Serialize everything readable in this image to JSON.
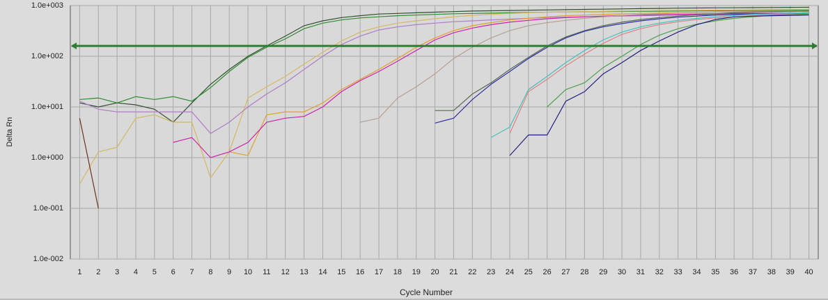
{
  "chart_data": {
    "type": "line",
    "log_scale": true,
    "grid": true,
    "y_label": "Delta Rn",
    "x_label": "Cycle Number",
    "x": [
      1,
      2,
      3,
      4,
      5,
      6,
      7,
      8,
      9,
      10,
      11,
      12,
      13,
      14,
      15,
      16,
      17,
      18,
      19,
      20,
      21,
      22,
      23,
      24,
      25,
      26,
      27,
      28,
      29,
      30,
      31,
      32,
      33,
      34,
      35,
      36,
      37,
      38,
      39,
      40
    ],
    "xlim": [
      0.5,
      40.5
    ],
    "xticks": [
      1,
      2,
      3,
      4,
      5,
      6,
      7,
      8,
      9,
      10,
      11,
      12,
      13,
      14,
      15,
      16,
      17,
      18,
      19,
      20,
      21,
      22,
      23,
      24,
      25,
      26,
      27,
      28,
      29,
      30,
      31,
      32,
      33,
      34,
      35,
      36,
      37,
      38,
      39,
      40
    ],
    "ylim": [
      0.01,
      1000
    ],
    "yticks": [
      {
        "value": 0.01,
        "label": "1.0e-002"
      },
      {
        "value": 0.1,
        "label": "1.0e-001"
      },
      {
        "value": 1,
        "label": "1.0e+000"
      },
      {
        "value": 10,
        "label": "1.0e+001"
      },
      {
        "value": 100,
        "label": "1.0e+002"
      },
      {
        "value": 1000,
        "label": "1.0e+003"
      }
    ],
    "threshold": 160,
    "threshold_color": "#2e7d32",
    "series": [
      {
        "color": "#2f4f2f",
        "values": [
          12,
          10,
          12,
          11,
          9,
          5,
          12,
          28,
          55,
          100,
          160,
          250,
          400,
          500,
          580,
          630,
          680,
          700,
          720,
          740,
          760,
          780,
          790,
          800,
          810,
          820,
          830,
          840,
          850,
          860,
          870,
          880,
          890,
          895,
          900,
          905,
          910,
          915,
          920,
          925
        ]
      },
      {
        "color": "#2e8b2e",
        "values": [
          14,
          15,
          12,
          16,
          14,
          16,
          13,
          24,
          50,
          95,
          150,
          220,
          350,
          450,
          520,
          570,
          600,
          630,
          650,
          670,
          690,
          700,
          710,
          720,
          730,
          740,
          750,
          755,
          760,
          765,
          770,
          775,
          780,
          785,
          790,
          795,
          800,
          805,
          810,
          815
        ]
      },
      {
        "color": "#d4b860",
        "values": [
          0.3,
          1.3,
          1.6,
          6,
          7,
          5,
          5,
          0.4,
          1.3,
          15,
          25,
          40,
          70,
          120,
          200,
          300,
          380,
          450,
          500,
          550,
          600,
          640,
          670,
          700,
          720,
          740,
          750,
          760,
          770,
          780,
          790,
          800,
          805,
          810,
          815,
          820,
          825,
          830,
          835,
          840
        ]
      },
      {
        "color": "#b07cc6",
        "values": [
          13,
          9,
          8,
          8,
          8,
          8,
          8,
          3,
          5,
          10,
          18,
          30,
          55,
          100,
          170,
          250,
          330,
          380,
          420,
          450,
          480,
          500,
          520,
          540,
          560,
          580,
          590,
          600,
          610,
          620,
          630,
          640,
          650,
          655,
          660,
          665,
          670,
          675,
          680,
          685
        ]
      },
      {
        "color": "#e0a030",
        "values": [
          null,
          null,
          null,
          null,
          null,
          null,
          null,
          null,
          1.3,
          1.1,
          7,
          8,
          8,
          12,
          22,
          35,
          55,
          90,
          150,
          230,
          320,
          400,
          460,
          520,
          560,
          600,
          630,
          650,
          670,
          690,
          700,
          710,
          720,
          730,
          740,
          750,
          755,
          760,
          765,
          770
        ]
      },
      {
        "color": "#cc22aa",
        "values": [
          null,
          null,
          null,
          null,
          null,
          2,
          2.5,
          1,
          1.3,
          2,
          5,
          6,
          6.5,
          10,
          20,
          33,
          50,
          80,
          130,
          210,
          290,
          360,
          420,
          470,
          510,
          550,
          580,
          600,
          620,
          640,
          650,
          660,
          670,
          680,
          690,
          695,
          700,
          705,
          710,
          715
        ]
      },
      {
        "color": "#b8a090",
        "values": [
          null,
          null,
          null,
          null,
          null,
          null,
          null,
          null,
          null,
          null,
          null,
          null,
          null,
          null,
          null,
          5,
          6,
          15,
          25,
          45,
          90,
          150,
          230,
          320,
          400,
          460,
          510,
          560,
          600,
          640,
          670,
          690,
          710,
          730,
          740,
          750,
          760,
          770,
          780,
          790
        ]
      },
      {
        "color": "#556b55",
        "values": [
          null,
          null,
          null,
          null,
          null,
          null,
          null,
          null,
          null,
          null,
          null,
          null,
          null,
          null,
          null,
          null,
          null,
          null,
          null,
          8.5,
          8.5,
          18,
          30,
          55,
          95,
          160,
          240,
          320,
          400,
          470,
          530,
          580,
          620,
          660,
          690,
          720,
          740,
          760,
          770,
          780
        ]
      },
      {
        "color": "#3030a0",
        "values": [
          null,
          null,
          null,
          null,
          null,
          null,
          null,
          null,
          null,
          null,
          null,
          null,
          null,
          null,
          null,
          null,
          null,
          null,
          null,
          4.8,
          6,
          14,
          28,
          50,
          90,
          150,
          230,
          310,
          380,
          440,
          500,
          550,
          590,
          620,
          650,
          670,
          690,
          700,
          710,
          720
        ]
      },
      {
        "color": "#40c0c0",
        "values": [
          null,
          null,
          null,
          null,
          null,
          null,
          null,
          null,
          null,
          null,
          null,
          null,
          null,
          null,
          null,
          null,
          null,
          null,
          null,
          null,
          null,
          null,
          2.5,
          4,
          22,
          40,
          75,
          130,
          210,
          300,
          380,
          450,
          510,
          560,
          600,
          640,
          670,
          690,
          710,
          720
        ]
      },
      {
        "color": "#e08080",
        "values": [
          null,
          null,
          null,
          null,
          null,
          null,
          null,
          null,
          null,
          null,
          null,
          null,
          null,
          null,
          null,
          null,
          null,
          null,
          null,
          null,
          null,
          null,
          null,
          3,
          20,
          35,
          65,
          110,
          180,
          270,
          350,
          420,
          480,
          530,
          570,
          600,
          630,
          650,
          660,
          670
        ]
      },
      {
        "color": "#50a050",
        "values": [
          null,
          null,
          null,
          null,
          null,
          null,
          null,
          null,
          null,
          null,
          null,
          null,
          null,
          null,
          null,
          null,
          null,
          null,
          null,
          null,
          null,
          null,
          null,
          null,
          null,
          10,
          22,
          30,
          60,
          100,
          170,
          260,
          350,
          430,
          500,
          560,
          600,
          640,
          660,
          680
        ]
      },
      {
        "color": "#202080",
        "values": [
          null,
          null,
          null,
          null,
          null,
          null,
          null,
          null,
          null,
          null,
          null,
          null,
          null,
          null,
          null,
          null,
          null,
          null,
          null,
          null,
          null,
          null,
          null,
          1.1,
          2.8,
          2.8,
          13,
          20,
          45,
          75,
          130,
          200,
          300,
          420,
          530,
          600,
          620,
          630,
          640,
          650
        ]
      },
      {
        "color": "#703020",
        "values": [
          6,
          0.1,
          null,
          null,
          null,
          null,
          null,
          null,
          null,
          null,
          null,
          null,
          null,
          null,
          null,
          null,
          null,
          null,
          null,
          null,
          null,
          null,
          null,
          null,
          null,
          null,
          null,
          null,
          null,
          null,
          null,
          null,
          null,
          null,
          null,
          null,
          null,
          null,
          null,
          null
        ]
      }
    ]
  }
}
